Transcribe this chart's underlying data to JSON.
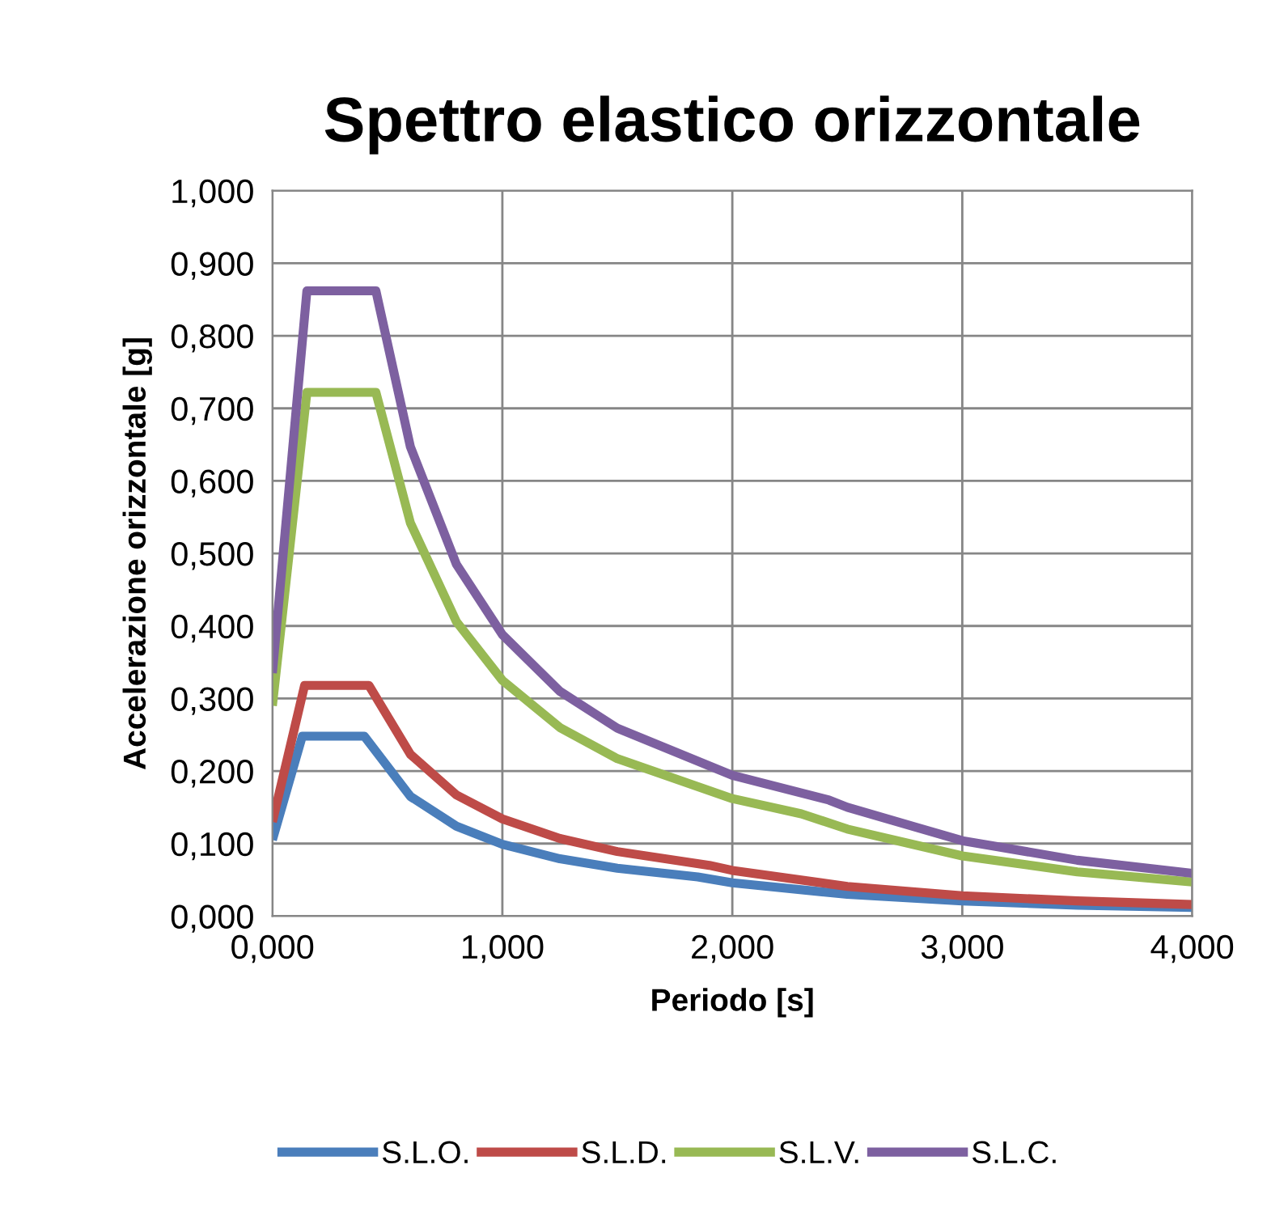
{
  "chart_data": {
    "type": "line",
    "title": "Spettro elastico orizzontale",
    "xlabel": "Periodo [s]",
    "ylabel": "Accelerazione orizzontale [g]",
    "xlim": [
      0,
      4
    ],
    "xticks": [
      {
        "value": 0,
        "label": "0,000"
      },
      {
        "value": 1,
        "label": "1,000"
      },
      {
        "value": 2,
        "label": "2,000"
      },
      {
        "value": 3,
        "label": "3,000"
      },
      {
        "value": 4,
        "label": "4,000"
      }
    ],
    "ylim": [
      0,
      1
    ],
    "yticks": [
      {
        "value": 0,
        "label": "0,000"
      },
      {
        "value": 0.1,
        "label": "0,100"
      },
      {
        "value": 0.2,
        "label": "0,200"
      },
      {
        "value": 0.3,
        "label": "0,300"
      },
      {
        "value": 0.4,
        "label": "0,400"
      },
      {
        "value": 0.5,
        "label": "0,500"
      },
      {
        "value": 0.6,
        "label": "0,600"
      },
      {
        "value": 0.7,
        "label": "0,700"
      },
      {
        "value": 0.8,
        "label": "0,800"
      },
      {
        "value": 0.9,
        "label": "0,900"
      },
      {
        "value": 1,
        "label": "1,000"
      }
    ],
    "grid": true,
    "legend": "bottom",
    "marker": "none",
    "line_style": "solid",
    "series": [
      {
        "name": "S.L.O.",
        "color": "#4a7ebb",
        "x": [
          0,
          0.13,
          0.4,
          0.6,
          0.8,
          1.0,
          1.25,
          1.5,
          1.85,
          2.0,
          2.5,
          3.0,
          3.5,
          4.0
        ],
        "values": [
          0.105,
          0.248,
          0.248,
          0.165,
          0.124,
          0.099,
          0.079,
          0.066,
          0.054,
          0.046,
          0.03,
          0.021,
          0.015,
          0.012
        ]
      },
      {
        "name": "S.L.D.",
        "color": "#be4b48",
        "x": [
          0,
          0.14,
          0.42,
          0.6,
          0.8,
          1.0,
          1.25,
          1.5,
          1.9,
          2.0,
          2.5,
          3.0,
          3.5,
          4.0
        ],
        "values": [
          0.13,
          0.318,
          0.318,
          0.223,
          0.167,
          0.134,
          0.107,
          0.089,
          0.07,
          0.063,
          0.041,
          0.028,
          0.021,
          0.016
        ]
      },
      {
        "name": "S.L.V.",
        "color": "#98b954",
        "x": [
          0,
          0.15,
          0.45,
          0.6,
          0.8,
          1.0,
          1.25,
          1.5,
          2.0,
          2.3,
          2.5,
          3.0,
          3.5,
          4.0
        ],
        "values": [
          0.29,
          0.722,
          0.722,
          0.542,
          0.406,
          0.325,
          0.26,
          0.217,
          0.162,
          0.141,
          0.12,
          0.083,
          0.061,
          0.047
        ]
      },
      {
        "name": "S.L.C.",
        "color": "#7d60a0",
        "x": [
          0,
          0.15,
          0.45,
          0.6,
          0.8,
          1.0,
          1.25,
          1.5,
          2.0,
          2.42,
          2.5,
          3.0,
          3.5,
          4.0
        ],
        "values": [
          0.335,
          0.862,
          0.862,
          0.647,
          0.485,
          0.388,
          0.31,
          0.259,
          0.194,
          0.16,
          0.15,
          0.104,
          0.077,
          0.059
        ]
      }
    ]
  }
}
